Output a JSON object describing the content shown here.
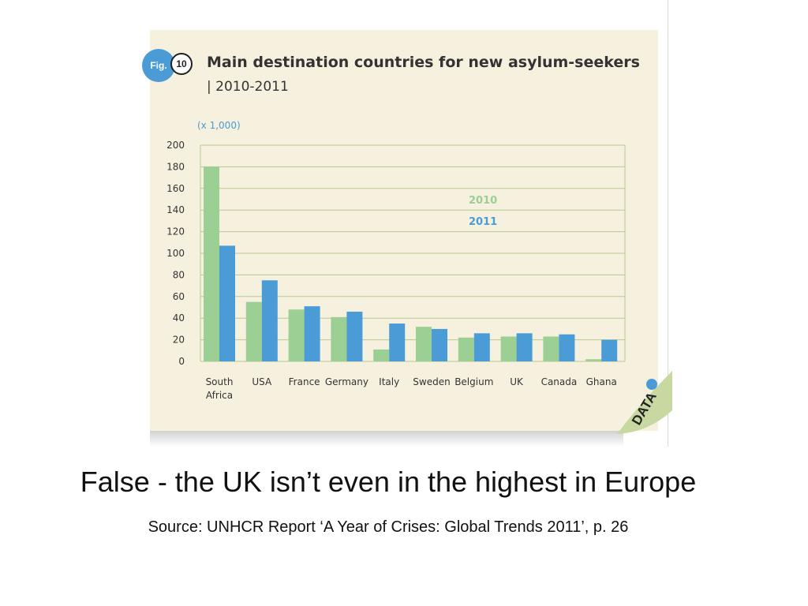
{
  "figure": {
    "badge_label": "Fig.",
    "badge_number": "10",
    "data_badge_label": "DATA"
  },
  "caption": {
    "main": "False - the UK isn’t even in the highest in Europe",
    "source": "Source: UNHCR Report ‘A Year of Crises: Global Trends 2011’, p. 26"
  },
  "colors": {
    "series_2010": "#9ccf94",
    "series_2011": "#4a9bd6",
    "grid": "#b5c98f",
    "card_background": "#f6f1df"
  },
  "chart_data": {
    "type": "bar",
    "title": "Main destination countries for new asylum-seekers",
    "subtitle": "| 2010-2011",
    "ylabel": "(x 1,000)",
    "xlabel": "",
    "ylim": [
      0,
      200
    ],
    "yticks": [
      0,
      20,
      40,
      60,
      80,
      100,
      120,
      140,
      160,
      180,
      200
    ],
    "grid": true,
    "legend_position": "center-right",
    "categories": [
      [
        "South",
        "Africa"
      ],
      [
        "USA"
      ],
      [
        "France"
      ],
      [
        "Germany"
      ],
      [
        "Italy"
      ],
      [
        "Sweden"
      ],
      [
        "Belgium"
      ],
      [
        "UK"
      ],
      [
        "Canada"
      ],
      [
        "Ghana"
      ]
    ],
    "series": [
      {
        "name": "2010",
        "values": [
          180,
          55,
          48,
          41,
          11,
          32,
          22,
          23,
          23,
          2
        ]
      },
      {
        "name": "2011",
        "values": [
          107,
          75,
          51,
          46,
          35,
          30,
          26,
          26,
          25,
          20
        ]
      }
    ]
  }
}
